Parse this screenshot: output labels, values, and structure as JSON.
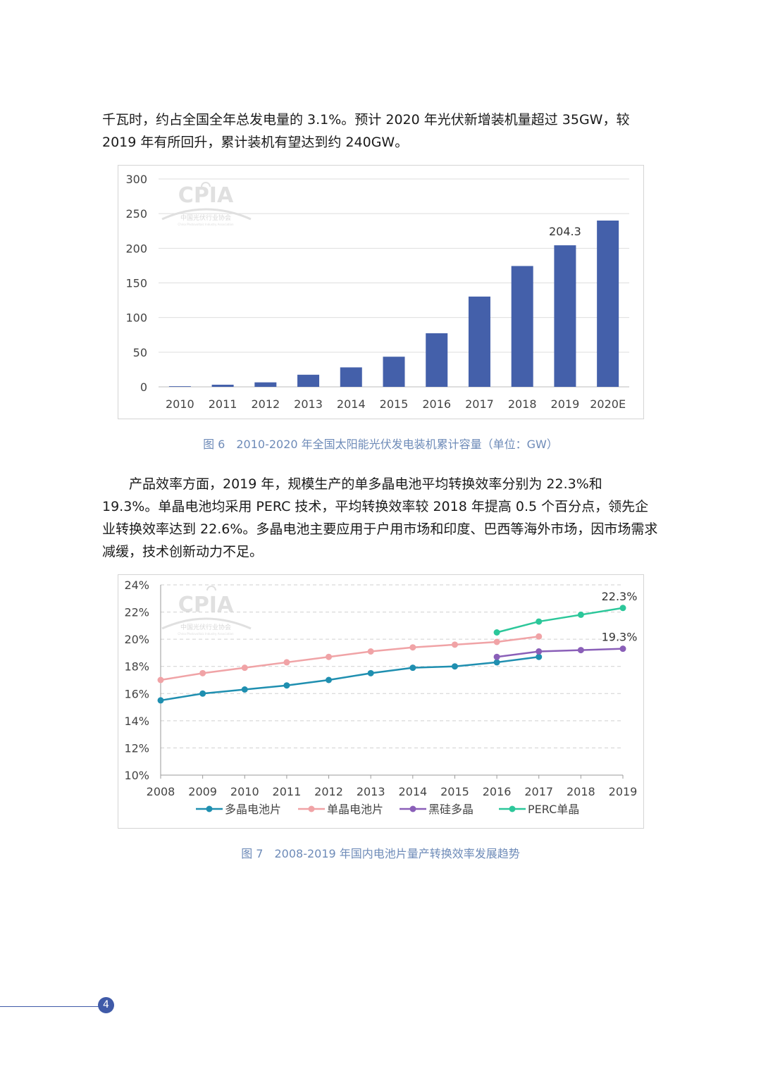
{
  "paragraphs": {
    "p1": "千瓦时，约占全国全年总发电量的 3.1%。预计 2020 年光伏新增装机量超过 35GW，较 2019 年有所回升，累计装机有望达到约 240GW。",
    "p2": "产品效率方面，2019 年，规模生产的单多晶电池平均转换效率分别为 22.3%和 19.3%。单晶电池均采用 PERC 技术，平均转换效率较 2018 年提高 0.5 个百分点，领先企业转换效率达到 22.6%。多晶电池主要应用于户用市场和印度、巴西等海外市场，因市场需求减缓，技术创新动力不足。"
  },
  "watermark": {
    "logo_text": "CPIA",
    "org_cn": "中国光伏行业协会",
    "org_en": "China Photovoltaic Industry Association"
  },
  "captions": {
    "fig6": "图 6　2010-2020 年全国太阳能光伏发电装机累计容量（单位：GW）",
    "fig7": "图 7　2008-2019 年国内电池片量产转换效率发展趋势"
  },
  "page_number": "4",
  "colors": {
    "bar": "#4460aa",
    "poly": "#1f8fb0",
    "mono": "#f0a3a6",
    "black_silicon": "#8a5fb8",
    "perc": "#2cc79a",
    "caption": "#6e8bb8"
  },
  "chart_data": [
    {
      "type": "bar",
      "categories": [
        "2010",
        "2011",
        "2012",
        "2013",
        "2014",
        "2015",
        "2016",
        "2017",
        "2018",
        "2019",
        "2020E"
      ],
      "values": [
        0.9,
        3.1,
        6.5,
        17.5,
        28.1,
        43.5,
        77.4,
        130.3,
        174.4,
        204.3,
        240
      ],
      "data_labels": [
        {
          "category": "2019",
          "text": "204.3"
        }
      ],
      "yticks": [
        "0",
        "50",
        "100",
        "150",
        "200",
        "250",
        "300"
      ],
      "ylim": [
        0,
        300
      ],
      "grid": true,
      "legend": "none"
    },
    {
      "type": "line",
      "x": [
        "2008",
        "2009",
        "2010",
        "2011",
        "2012",
        "2013",
        "2014",
        "2015",
        "2016",
        "2017",
        "2018",
        "2019"
      ],
      "series": [
        {
          "name": "多晶电池片",
          "values": [
            15.5,
            16.0,
            16.3,
            16.6,
            17.0,
            17.5,
            17.9,
            18.0,
            18.3,
            18.7,
            null,
            null
          ]
        },
        {
          "name": "单晶电池片",
          "values": [
            17.0,
            17.5,
            17.9,
            18.3,
            18.7,
            19.1,
            19.4,
            19.6,
            19.8,
            20.2,
            null,
            null
          ]
        },
        {
          "name": "黑硅多晶",
          "values": [
            null,
            null,
            null,
            null,
            null,
            null,
            null,
            null,
            18.7,
            19.1,
            19.2,
            19.3
          ]
        },
        {
          "name": "PERC单晶",
          "values": [
            null,
            null,
            null,
            null,
            null,
            null,
            null,
            null,
            20.5,
            21.3,
            21.8,
            22.3
          ]
        }
      ],
      "data_labels": [
        {
          "series": "PERC单晶",
          "x": "2019",
          "text": "22.3%"
        },
        {
          "series": "黑硅多晶",
          "x": "2019",
          "text": "19.3%"
        }
      ],
      "yticks": [
        "10%",
        "12%",
        "14%",
        "16%",
        "18%",
        "20%",
        "22%",
        "24%"
      ],
      "ylim": [
        10,
        24
      ],
      "grid": true,
      "legend": "bottom"
    }
  ]
}
